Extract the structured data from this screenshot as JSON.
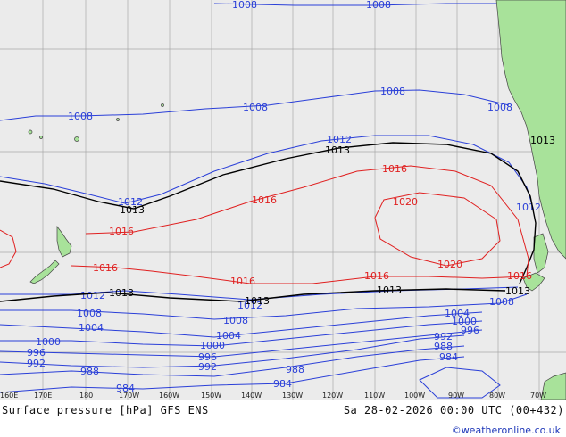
{
  "map": {
    "title": "Surface pressure [hPa] GFS ENS",
    "datetime": "Sa 28-02-2026 00:00 UTC (00+432)",
    "credit": "©weatheronline.co.uk",
    "colors": {
      "ocean": "#ebebeb",
      "land": "#a8e29a",
      "low": "#2a3fd8",
      "high": "#e02020",
      "mean": "#000000"
    },
    "lon_labels": [
      "160E",
      "170E",
      "180",
      "170W",
      "160W",
      "150W",
      "140W",
      "130W",
      "120W",
      "110W",
      "100W",
      "90W",
      "80W",
      "70W"
    ],
    "isobar_labels": {
      "b1008_top1": "1008",
      "b1008_top2": "1008",
      "b1008_a": "1008",
      "b1008_b": "1008",
      "b1008_c": "1008",
      "b1008_d": "1008",
      "b1012_a": "1012",
      "b1012_b": "1012",
      "b1012_c": "1012",
      "k1013_a": "1013",
      "k1013_b": "1013",
      "k1013_c": "1013",
      "r1016_a": "1016",
      "r1016_b": "1016",
      "r1016_c": "1016",
      "r1016_d": "1016",
      "r1016_e": "1016",
      "r1016_f": "1016",
      "r1020_a": "1020",
      "r1020_b": "1020",
      "r1016_g": "1016",
      "b1012_s": "1012",
      "k1013_s1": "1013",
      "k1013_s2": "1013",
      "k1013_s3": "1013",
      "k1013_s4": "1013",
      "b1012_s2": "1012",
      "b1008_s1": "1008",
      "b1008_s2": "1008",
      "b1008_s3": "1008",
      "b1004_a": "1004",
      "b1004_b": "1004",
      "b1004_c": "1004",
      "b1000_a": "1000",
      "b1000_b": "1000",
      "b1000_c": "1000",
      "b996_a": "996",
      "b996_b": "996",
      "b996_c": "996",
      "b992_a": "992",
      "b992_b": "992",
      "b992_c": "992",
      "b988_a": "988",
      "b988_b": "988",
      "b988_c": "988",
      "b984_a": "984",
      "b984_b": "984",
      "b984_c": "984"
    }
  }
}
